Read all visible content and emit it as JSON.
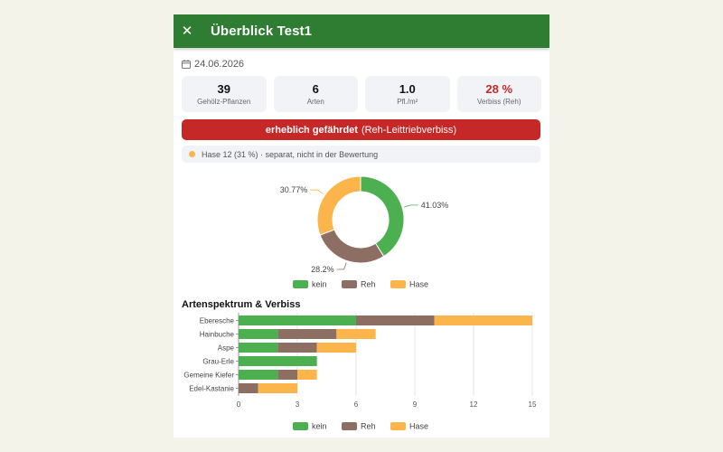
{
  "header": {
    "title": "Überblick Test1",
    "close_icon": "close-icon"
  },
  "date": "24.06.2026",
  "stats": [
    {
      "value": "39",
      "label": "Gehölz-Pflanzen"
    },
    {
      "value": "6",
      "label": "Arten"
    },
    {
      "value": "1.0",
      "label": "Pfl./m²"
    },
    {
      "value": "28 %",
      "label": "Verbiss (Reh)"
    }
  ],
  "alert": {
    "status": "erheblich gefährdet",
    "detail": "(Reh-Leittriebverbiss)"
  },
  "hint": {
    "text": "Hase 12 (31 %) · separat, nicht in der Bewertung"
  },
  "colors": {
    "kein": "#4caf50",
    "Reh": "#8d6e63",
    "Hase": "#fbb54a",
    "accent": "#2e7d32",
    "danger": "#c62828"
  },
  "section_title": "Artenspektrum & Verbiss",
  "chart_data": [
    {
      "type": "pie",
      "variant": "donut",
      "slices": [
        {
          "name": "kein",
          "value": 41.03,
          "label": "41.03%"
        },
        {
          "name": "Reh",
          "value": 28.2,
          "label": "28.2%"
        },
        {
          "name": "Hase",
          "value": 30.77,
          "label": "30.77%"
        }
      ],
      "legend": [
        "kein",
        "Reh",
        "Hase"
      ],
      "legend_position": "bottom"
    },
    {
      "type": "bar",
      "orientation": "horizontal",
      "stacked": true,
      "categories": [
        "Eberesche",
        "Hainbuche",
        "Aspe",
        "Grau-Erle",
        "Gemeine Kiefer",
        "Edel-Kastanie"
      ],
      "series": [
        {
          "name": "kein",
          "values": [
            6,
            2,
            2,
            4,
            2,
            0
          ]
        },
        {
          "name": "Reh",
          "values": [
            4,
            3,
            2,
            0,
            1,
            1
          ]
        },
        {
          "name": "Hase",
          "values": [
            5,
            2,
            2,
            0,
            1,
            2
          ]
        }
      ],
      "xlim": [
        0,
        15
      ],
      "xticks": [
        "0",
        "3",
        "6",
        "9",
        "12",
        "15"
      ],
      "grid": true,
      "legend": [
        "kein",
        "Reh",
        "Hase"
      ],
      "legend_position": "bottom"
    }
  ]
}
